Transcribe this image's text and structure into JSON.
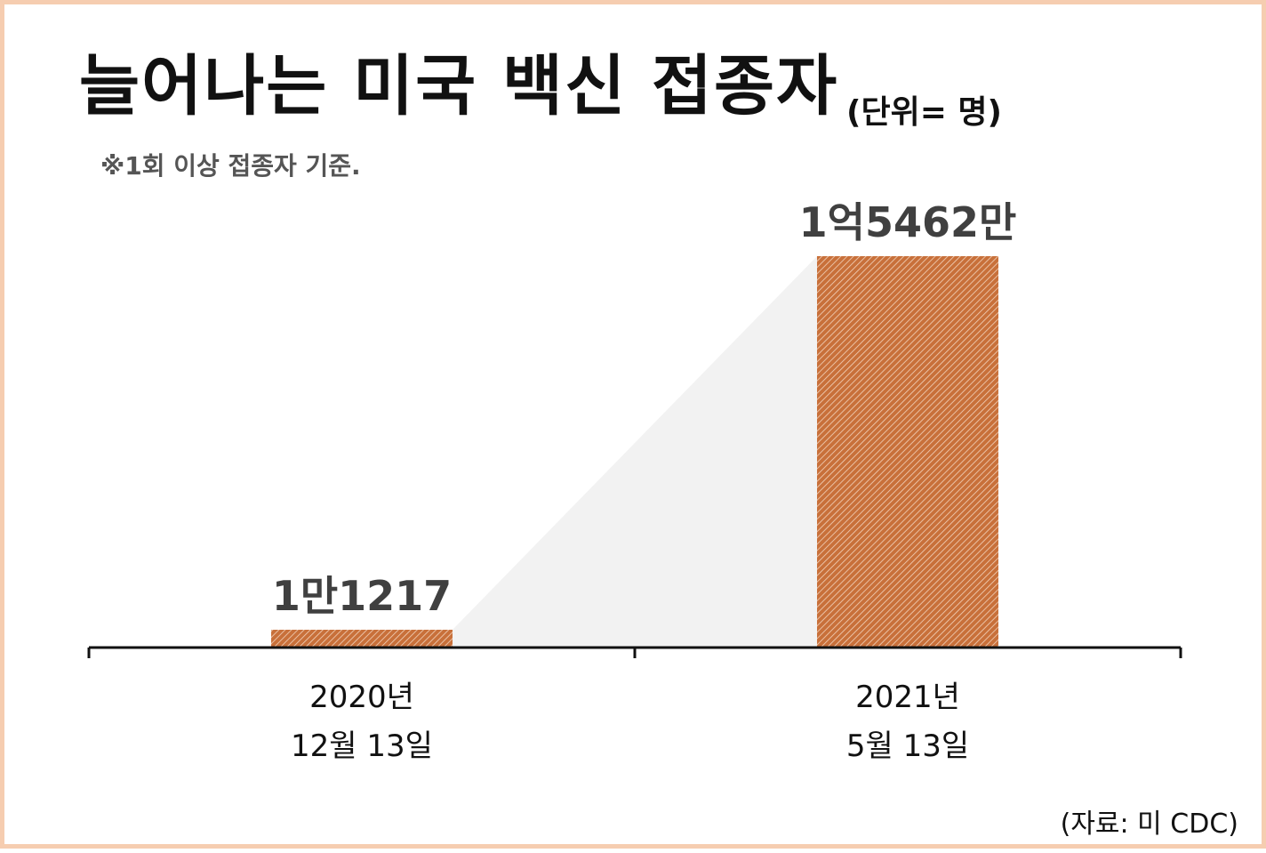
{
  "title": "늘어나는 미국 백신 접종자",
  "unit": "(단위= 명)",
  "note": "※1회 이상 접종자 기준.",
  "source": "(자료: 미 CDC)",
  "colors": {
    "border": "#f6cdb0",
    "bar": "#c8703a",
    "bar_hatch": "#f3d4bd",
    "connector": "#f2f2f2",
    "axis": "#111111",
    "value_text": "#404040"
  },
  "chart_data": {
    "type": "bar",
    "categories": [
      [
        "2020년",
        "12월 13일"
      ],
      [
        "2021년",
        "5월 13일"
      ]
    ],
    "values": [
      11217,
      154620000
    ],
    "value_labels": [
      "1만1217",
      "1억5462만"
    ],
    "title": "늘어나는 미국 백신 접종자",
    "xlabel": "",
    "ylabel": "",
    "unit": "명",
    "grid": false,
    "legend": "none"
  }
}
